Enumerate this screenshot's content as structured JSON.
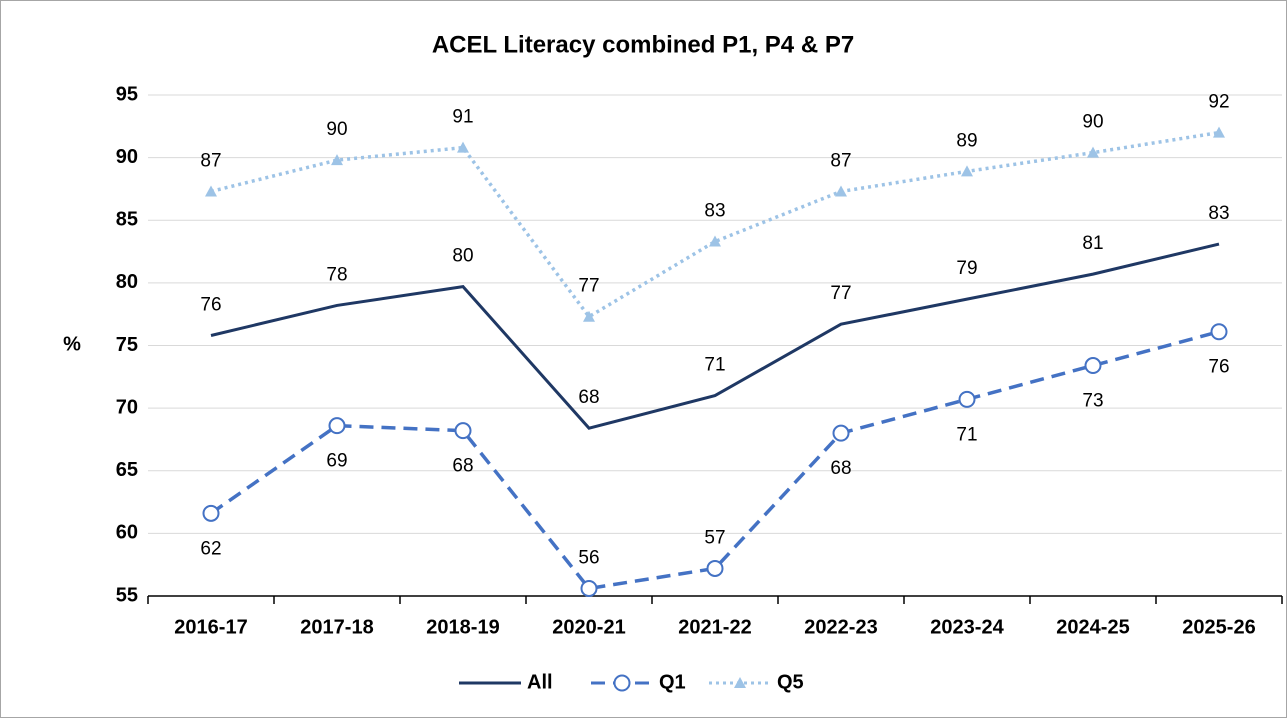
{
  "chart_data": {
    "type": "line",
    "title": "ACEL Literacy combined P1, P4 & P7",
    "y_label": "%",
    "categories": [
      "2016-17",
      "2017-18",
      "2018-19",
      "2020-21",
      "2021-22",
      "2022-23",
      "2023-24",
      "2024-25",
      "2025-26"
    ],
    "series": [
      {
        "name": "All",
        "color": "#1f3864",
        "style": "solid",
        "marker": "none",
        "values": [
          75.8,
          78.2,
          79.7,
          68.4,
          71.0,
          76.7,
          78.7,
          80.7,
          83.1
        ],
        "value_labels": [
          "76",
          "78",
          "80",
          "68",
          "71",
          "77",
          "79",
          "81",
          "83"
        ]
      },
      {
        "name": "Q1",
        "color": "#4472c4",
        "style": "dashed",
        "marker": "circle",
        "values": [
          61.6,
          68.6,
          68.2,
          55.6,
          57.2,
          68.0,
          70.7,
          73.4,
          76.1
        ],
        "value_labels": [
          "62",
          "69",
          "68",
          "56",
          "57",
          "68",
          "71",
          "73",
          "76"
        ]
      },
      {
        "name": "Q5",
        "color": "#9dc3e6",
        "style": "dotted",
        "marker": "triangle",
        "values": [
          87.3,
          89.8,
          90.8,
          77.3,
          83.3,
          87.3,
          88.9,
          90.4,
          92.0
        ],
        "value_labels": [
          "87",
          "90",
          "91",
          "77",
          "83",
          "87",
          "89",
          "90",
          "92"
        ]
      }
    ],
    "ylim": [
      55,
      95
    ],
    "yticks": [
      55,
      60,
      65,
      70,
      75,
      80,
      85,
      90,
      95
    ],
    "grid": true,
    "legend": "bottom"
  }
}
